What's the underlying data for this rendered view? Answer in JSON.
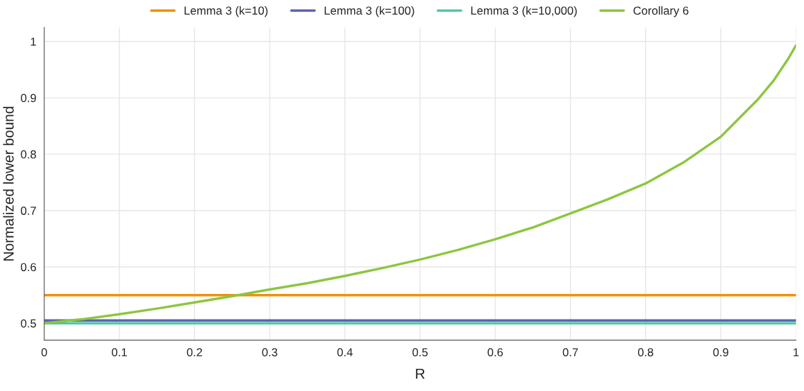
{
  "chart_data": {
    "type": "line",
    "xlabel": "R",
    "ylabel": "Normalized lower bound",
    "xlim": [
      0,
      1
    ],
    "ylim": [
      0.47,
      1.025
    ],
    "xticks": [
      0,
      0.1,
      0.2,
      0.3,
      0.4,
      0.5,
      0.6,
      0.7,
      0.8,
      0.9,
      1
    ],
    "yticks": [
      0.5,
      0.6,
      0.7,
      0.8,
      0.9,
      1
    ],
    "grid": true,
    "legend": "top",
    "marker": "none",
    "line_style": "solid",
    "series": [
      {
        "name": "Lemma 3 (k=10)",
        "color": "#f0900a",
        "x": [
          0,
          1
        ],
        "values": [
          0.55,
          0.55
        ]
      },
      {
        "name": "Lemma 3 (k=100)",
        "color": "#5b63b0",
        "x": [
          0,
          1
        ],
        "values": [
          0.505,
          0.505
        ]
      },
      {
        "name": "Lemma 3 (k=10,000)",
        "color": "#4fc8a8",
        "x": [
          0,
          1
        ],
        "values": [
          0.5,
          0.5
        ]
      },
      {
        "name": "Corollary 6",
        "color": "#8cc63f",
        "x": [
          0,
          0.05,
          0.1,
          0.15,
          0.2,
          0.25,
          0.3,
          0.35,
          0.4,
          0.45,
          0.5,
          0.55,
          0.6,
          0.65,
          0.7,
          0.75,
          0.8,
          0.85,
          0.9,
          0.95,
          0.97,
          0.99,
          1
        ],
        "values": [
          0.5,
          0.507,
          0.516,
          0.526,
          0.537,
          0.548,
          0.56,
          0.571,
          0.584,
          0.598,
          0.613,
          0.63,
          0.649,
          0.67,
          0.695,
          0.72,
          0.748,
          0.785,
          0.831,
          0.898,
          0.93,
          0.97,
          0.993
        ]
      }
    ]
  }
}
